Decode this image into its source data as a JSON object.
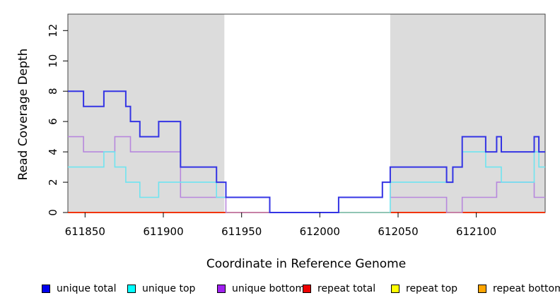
{
  "chart_data": {
    "type": "line",
    "step": "post",
    "title": "",
    "xlabel": "Coordinate in Reference Genome",
    "ylabel": "Read Coverage Depth",
    "xlim": [
      611839,
      612144
    ],
    "ylim": [
      0,
      13.1
    ],
    "x_ticks": [
      611850,
      611900,
      611950,
      612000,
      612050,
      612100
    ],
    "y_ticks": [
      0,
      2,
      4,
      6,
      8,
      10,
      12
    ],
    "grid": false,
    "legend_position": "bottom",
    "shade_color": "#DCDCDC",
    "border_color": "#444444",
    "shaded_regions": [
      [
        611839,
        611939
      ],
      [
        612045,
        612144
      ]
    ],
    "series": [
      {
        "name": "unique total",
        "color": "#0000EE",
        "line_color": "#3434E4",
        "width": 2,
        "steps": [
          [
            611839,
            8
          ],
          [
            611849,
            7
          ],
          [
            611862,
            8
          ],
          [
            611876,
            7
          ],
          [
            611879,
            6
          ],
          [
            611885,
            5
          ],
          [
            611897,
            6
          ],
          [
            611911,
            3
          ],
          [
            611934,
            2
          ],
          [
            611940,
            1
          ],
          [
            611968,
            0
          ],
          [
            612012,
            1
          ],
          [
            612040,
            2
          ],
          [
            612045,
            3
          ],
          [
            612081,
            2
          ],
          [
            612085,
            3
          ],
          [
            612091,
            5
          ],
          [
            612106,
            4
          ],
          [
            612113,
            5
          ],
          [
            612116,
            4
          ],
          [
            612137,
            5
          ],
          [
            612140,
            4
          ]
        ]
      },
      {
        "name": "unique top",
        "color": "#00FFFF",
        "line_color": "#6FE4F0",
        "width": 1.6,
        "steps": [
          [
            611839,
            3
          ],
          [
            611862,
            4
          ],
          [
            611869,
            3
          ],
          [
            611876,
            2
          ],
          [
            611885,
            1
          ],
          [
            611897,
            2
          ],
          [
            611934,
            1
          ],
          [
            611968,
            0
          ],
          [
            612045,
            2
          ],
          [
            612085,
            3
          ],
          [
            612091,
            4
          ],
          [
            612106,
            3
          ],
          [
            612116,
            2
          ],
          [
            612137,
            4
          ],
          [
            612140,
            3
          ]
        ]
      },
      {
        "name": "unique bottom",
        "color": "#A020F0",
        "line_color": "#B787DD",
        "width": 1.6,
        "steps": [
          [
            611839,
            5
          ],
          [
            611849,
            4
          ],
          [
            611869,
            5
          ],
          [
            611879,
            4
          ],
          [
            611911,
            1
          ],
          [
            611940,
            0
          ],
          [
            612012,
            1
          ],
          [
            612040,
            2
          ],
          [
            612045,
            1
          ],
          [
            612081,
            0
          ],
          [
            612091,
            1
          ],
          [
            612113,
            2
          ],
          [
            612137,
            1
          ]
        ]
      },
      {
        "name": "repeat total",
        "color": "#EE0000",
        "line_color": "#EE0000",
        "width": 1.6,
        "steps": [
          [
            611839,
            0
          ]
        ]
      },
      {
        "name": "repeat top",
        "color": "#FFFF00",
        "line_color": "#FFFF00",
        "width": 1.6,
        "steps": [
          [
            611839,
            0
          ]
        ]
      },
      {
        "name": "repeat bottom",
        "color": "#FFA500",
        "line_color": "#FFA405",
        "width": 2,
        "steps": [
          [
            611839,
            0
          ]
        ]
      }
    ]
  },
  "legend": {
    "items": [
      {
        "label": "unique total",
        "color": "#0000EE"
      },
      {
        "label": "unique top",
        "color": "#00FFFF"
      },
      {
        "label": "unique bottom",
        "color": "#A020F0"
      },
      {
        "label": "repeat total",
        "color": "#EE0000"
      },
      {
        "label": "repeat top",
        "color": "#FFFF00"
      },
      {
        "label": "repeat bottom",
        "color": "#FFA500"
      }
    ]
  }
}
